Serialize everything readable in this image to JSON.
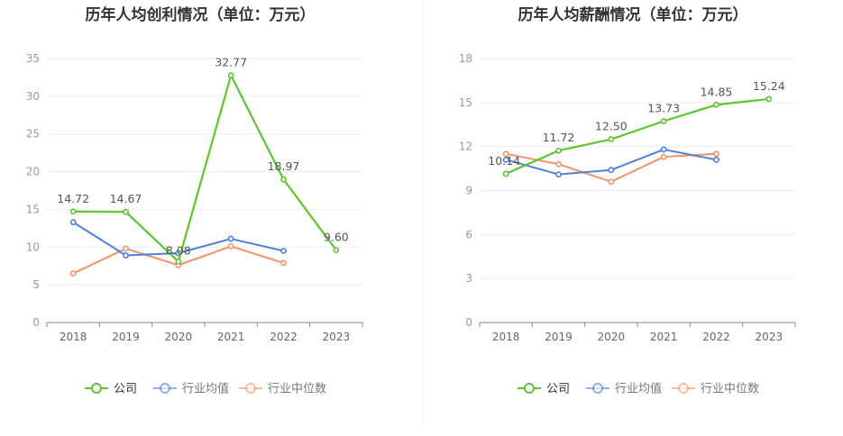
{
  "colors": {
    "company": "#5ec42f",
    "industry_avg": "#4e7ee0",
    "industry_median": "#f39468",
    "axis": "#999999",
    "grid": "#eeeeee"
  },
  "chart_data": [
    {
      "type": "line",
      "title": "历年人均创利情况（单位：万元）",
      "categories": [
        "2018",
        "2019",
        "2020",
        "2021",
        "2022",
        "2023"
      ],
      "ylim": [
        0,
        35
      ],
      "yticks": [
        0,
        5,
        10,
        15,
        20,
        25,
        30,
        35
      ],
      "grid": true,
      "legend_position": "bottom",
      "series": [
        {
          "name": "公司",
          "values": [
            14.72,
            14.67,
            8.08,
            32.77,
            18.97,
            9.6
          ],
          "labels": [
            "14.72",
            "14.67",
            "8.08",
            "32.77",
            "18.97",
            "9.60"
          ]
        },
        {
          "name": "行业均值",
          "values": [
            13.3,
            8.9,
            9.2,
            11.1,
            9.5,
            null
          ]
        },
        {
          "name": "行业中位数",
          "values": [
            6.5,
            9.8,
            7.6,
            10.1,
            7.9,
            null
          ]
        }
      ]
    },
    {
      "type": "line",
      "title": "历年人均薪酬情况（单位：万元）",
      "categories": [
        "2018",
        "2019",
        "2020",
        "2021",
        "2022",
        "2023"
      ],
      "ylim": [
        0,
        18
      ],
      "yticks": [
        0,
        3,
        6,
        9,
        12,
        15,
        18
      ],
      "grid": true,
      "legend_position": "bottom",
      "series": [
        {
          "name": "公司",
          "values": [
            10.14,
            11.72,
            12.5,
            13.73,
            14.85,
            15.24
          ],
          "labels": [
            "10.14",
            "11.72",
            "12.50",
            "13.73",
            "14.85",
            "15.24"
          ]
        },
        {
          "name": "行业均值",
          "values": [
            11.1,
            10.1,
            10.4,
            11.8,
            11.1,
            null
          ]
        },
        {
          "name": "行业中位数",
          "values": [
            11.5,
            10.8,
            9.6,
            11.3,
            11.5,
            null
          ]
        }
      ]
    }
  ]
}
